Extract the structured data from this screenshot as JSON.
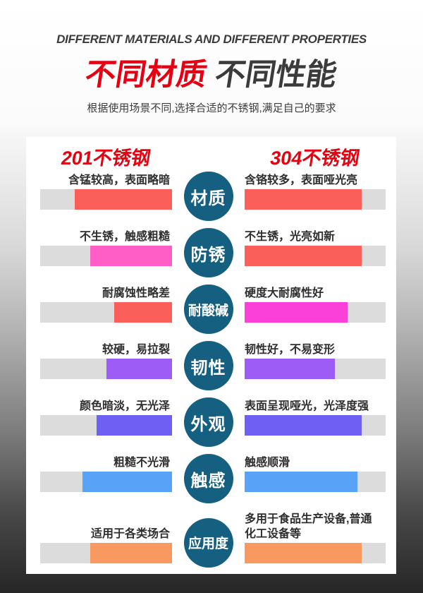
{
  "header": {
    "title_en": "DIFFERENT MATERIALS AND DIFFERENT PROPERTIES",
    "title_cn_red": "不同材质",
    "title_cn_dark": "不同性能",
    "subtitle": "根据使用场景不同,选择合适的不锈钢,满足自己的要求"
  },
  "comparison": {
    "left_header": "201不锈钢",
    "right_header": "304不锈钢",
    "accent_red": "#e60012",
    "circle_color": "#155f80",
    "track_color": "#dcdcdc",
    "rows": [
      {
        "category": "材质",
        "left_text": "含锰较高，表面略暗",
        "left_pct": 74,
        "left_color": "#fb5f5a",
        "right_text": "含铬较多，表面哑光亮",
        "right_pct": 83,
        "right_color": "#fb5f5a"
      },
      {
        "category": "防锈",
        "left_text": "不生锈，触感粗糙",
        "left_pct": 62,
        "left_color": "#ff5ec6",
        "right_text": "不生锈，光亮如新",
        "right_pct": 83,
        "right_color": "#fb5f5a"
      },
      {
        "category": "耐酸碱",
        "left_text": "耐腐蚀性略差",
        "left_pct": 44,
        "left_color": "#fb5f5a",
        "right_text": "硬度大耐腐性好",
        "right_pct": 73,
        "right_color": "#fa40d8"
      },
      {
        "category": "韧性",
        "left_text": "较硬，易拉裂",
        "left_pct": 50,
        "left_color": "#9d5cf5",
        "right_text": "韧性好，不易变形",
        "right_pct": 64,
        "right_color": "#9d5cf5"
      },
      {
        "category": "外观",
        "left_text": "颜色暗淡，无光泽",
        "left_pct": 57,
        "left_color": "#6e60f2",
        "right_text": "表面呈现哑光，光泽度强",
        "right_pct": 83,
        "right_color": "#6e60f2"
      },
      {
        "category": "触感",
        "left_text": "粗糙不光滑",
        "left_pct": 68,
        "left_color": "#58a2f8",
        "right_text": "触感顺滑",
        "right_pct": 80,
        "right_color": "#58a2f8"
      },
      {
        "category": "应用度",
        "left_text": "适用于各类场合",
        "left_pct": 62,
        "left_color": "#f9995f",
        "right_text": "多用于食品生产设备,普通化工设备等",
        "right_pct": 83,
        "right_color": "#f9995f"
      }
    ]
  }
}
